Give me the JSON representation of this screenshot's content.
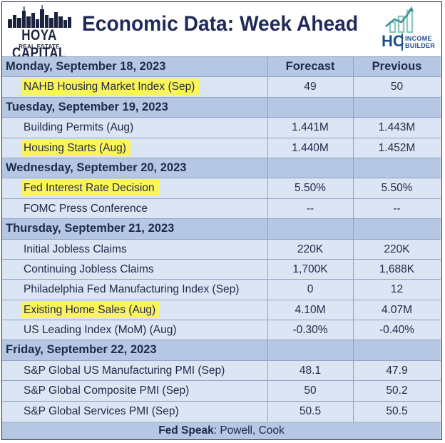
{
  "header": {
    "logo_left_line1": "HOYA CAPITAL",
    "logo_left_line2": "REAL ESTATE",
    "title": "Economic Data: Week Ahead",
    "logo_right_big": "HC",
    "logo_right_small_1": "INCOME",
    "logo_right_small_2": "BUILDER"
  },
  "columns": {
    "forecast": "Forecast",
    "previous": "Previous"
  },
  "days": [
    {
      "date": "Monday, September 18, 2023",
      "items": [
        {
          "label": "NAHB Housing Market Index (Sep)",
          "forecast": "49",
          "previous": "50",
          "highlight": true
        }
      ]
    },
    {
      "date": "Tuesday, September 19, 2023",
      "items": [
        {
          "label": "Building Permits (Aug)",
          "forecast": "1.441M",
          "previous": "1.443M",
          "highlight": false
        },
        {
          "label": "Housing Starts (Aug)",
          "forecast": "1.440M",
          "previous": "1.452M",
          "highlight": true
        }
      ]
    },
    {
      "date": "Wednesday, September 20, 2023",
      "items": [
        {
          "label": "Fed Interest Rate Decision",
          "forecast": "5.50%",
          "previous": "5.50%",
          "highlight": true
        },
        {
          "label": "FOMC Press Conference",
          "forecast": "--",
          "previous": "--",
          "highlight": false
        }
      ]
    },
    {
      "date": "Thursday, September 21, 2023",
      "items": [
        {
          "label": "Initial Jobless Claims",
          "forecast": "220K",
          "previous": "220K",
          "highlight": false
        },
        {
          "label": "Continuing Jobless Claims",
          "forecast": "1,700K",
          "previous": "1,688K",
          "highlight": false
        },
        {
          "label": "Philadelphia Fed Manufacturing Index (Sep)",
          "forecast": "0",
          "previous": "12",
          "highlight": false
        },
        {
          "label": "Existing Home Sales (Aug)",
          "forecast": "4.10M",
          "previous": "4.07M",
          "highlight": true
        },
        {
          "label": "US Leading Index (MoM) (Aug)",
          "forecast": "-0.30%",
          "previous": "-0.40%",
          "highlight": false
        }
      ]
    },
    {
      "date": "Friday, September 22, 2023",
      "items": [
        {
          "label": "S&P Global US Manufacturing PMI (Sep)",
          "forecast": "48.1",
          "previous": "47.9",
          "highlight": false
        },
        {
          "label": "S&P Global Composite PMI (Sep)",
          "forecast": "50",
          "previous": "50.2",
          "highlight": false
        },
        {
          "label": "S&P Global Services PMI (Sep)",
          "forecast": "50.5",
          "previous": "50.5",
          "highlight": false
        }
      ]
    }
  ],
  "footer": {
    "label": "Fed Speak",
    "sep": ": ",
    "text": "Powell, Cook"
  },
  "colors": {
    "day_row": "#b5c7e2",
    "item_row": "#dbe5f3",
    "highlight": "#fbf45a",
    "text": "#1f2a4a"
  }
}
